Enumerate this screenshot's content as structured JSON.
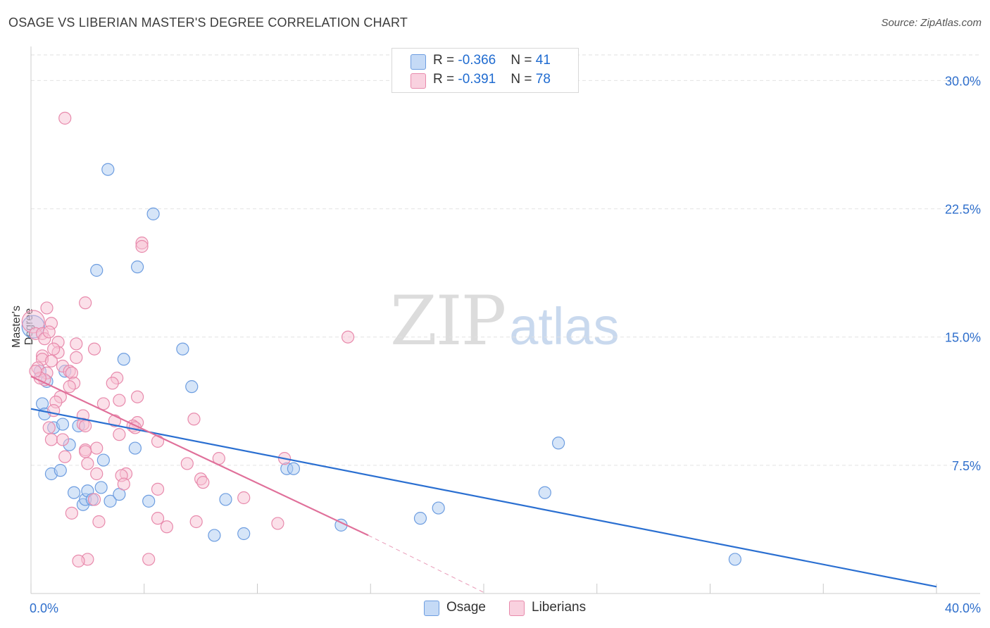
{
  "header": {
    "title": "OSAGE VS LIBERIAN MASTER'S DEGREE CORRELATION CHART",
    "source": "Source: ZipAtlas.com"
  },
  "watermark": {
    "zip": "ZIP",
    "atlas": "atlas"
  },
  "legend": {
    "rows": [
      {
        "r_label": "R = ",
        "r_value": "-0.366",
        "n_label": "N = ",
        "n_value": "41"
      },
      {
        "r_label": "R = ",
        "r_value": "-0.391",
        "n_label": "N = ",
        "n_value": "78"
      }
    ]
  },
  "colors": {
    "osage_fill": "#aecbf2",
    "osage_stroke": "#6d9de0",
    "osage_line": "#2a6fd1",
    "liberian_fill": "#f7c2d4",
    "liberian_stroke": "#e88aac",
    "liberian_line": "#e0709a",
    "axis_label": "#2f6fcc"
  },
  "chart_data": {
    "type": "scatter",
    "title": "OSAGE VS LIBERIAN MASTER'S DEGREE CORRELATION CHART",
    "xlabel": "",
    "ylabel": "Master's Degree",
    "xlim": [
      0,
      40
    ],
    "ylim": [
      0,
      31.5
    ],
    "x_tick_labels": [
      "0.0%",
      "40.0%"
    ],
    "y_ticks": [
      7.5,
      15.0,
      22.5,
      30.0
    ],
    "y_tick_labels": [
      "7.5%",
      "15.0%",
      "22.5%",
      "30.0%"
    ],
    "grid": true,
    "legend_position": "top-center",
    "series": [
      {
        "name": "Osage",
        "r": -0.366,
        "n": 41,
        "points": [
          [
            0.1,
            15.6
          ],
          [
            0.4,
            13.0
          ],
          [
            0.5,
            11.1
          ],
          [
            0.6,
            10.5
          ],
          [
            0.7,
            12.4
          ],
          [
            0.9,
            7.0
          ],
          [
            1.0,
            9.7
          ],
          [
            1.3,
            7.2
          ],
          [
            1.4,
            9.9
          ],
          [
            1.5,
            13.0
          ],
          [
            1.7,
            8.7
          ],
          [
            1.9,
            5.9
          ],
          [
            2.1,
            9.8
          ],
          [
            2.3,
            5.2
          ],
          [
            2.4,
            5.5
          ],
          [
            2.5,
            6.0
          ],
          [
            2.7,
            5.5
          ],
          [
            2.9,
            18.9
          ],
          [
            3.1,
            6.2
          ],
          [
            3.2,
            7.8
          ],
          [
            3.4,
            24.8
          ],
          [
            3.5,
            5.4
          ],
          [
            3.9,
            5.8
          ],
          [
            4.1,
            13.7
          ],
          [
            4.6,
            8.5
          ],
          [
            4.7,
            19.1
          ],
          [
            5.2,
            5.4
          ],
          [
            5.4,
            22.2
          ],
          [
            6.7,
            14.3
          ],
          [
            7.1,
            12.1
          ],
          [
            8.1,
            3.4
          ],
          [
            8.6,
            5.5
          ],
          [
            9.4,
            3.5
          ],
          [
            11.3,
            7.3
          ],
          [
            11.6,
            7.3
          ],
          [
            13.7,
            4.0
          ],
          [
            17.2,
            4.4
          ],
          [
            18.0,
            5.0
          ],
          [
            22.7,
            5.9
          ],
          [
            23.3,
            8.8
          ],
          [
            31.1,
            2.0
          ]
        ],
        "trend": {
          "x": [
            0,
            40
          ],
          "y": [
            10.8,
            0.4
          ]
        }
      },
      {
        "name": "Liberians",
        "r": -0.391,
        "n": 78,
        "points": [
          [
            1.5,
            27.8
          ],
          [
            4.9,
            20.5
          ],
          [
            4.9,
            20.3
          ],
          [
            2.4,
            17.0
          ],
          [
            0.7,
            16.7
          ],
          [
            0.1,
            15.9
          ],
          [
            0.9,
            15.8
          ],
          [
            0.2,
            15.2
          ],
          [
            0.5,
            15.2
          ],
          [
            0.6,
            14.9
          ],
          [
            14.0,
            15.0
          ],
          [
            1.2,
            14.7
          ],
          [
            2.0,
            14.6
          ],
          [
            2.8,
            14.3
          ],
          [
            1.2,
            14.1
          ],
          [
            0.5,
            13.9
          ],
          [
            0.5,
            13.7
          ],
          [
            2.0,
            13.8
          ],
          [
            0.9,
            13.6
          ],
          [
            1.4,
            13.3
          ],
          [
            0.3,
            13.2
          ],
          [
            1.7,
            13.0
          ],
          [
            0.7,
            12.9
          ],
          [
            1.8,
            12.9
          ],
          [
            3.8,
            12.6
          ],
          [
            0.6,
            12.5
          ],
          [
            1.9,
            12.3
          ],
          [
            3.6,
            12.3
          ],
          [
            1.7,
            12.1
          ],
          [
            1.3,
            11.5
          ],
          [
            1.1,
            11.2
          ],
          [
            4.7,
            11.5
          ],
          [
            3.2,
            11.1
          ],
          [
            3.9,
            11.3
          ],
          [
            1.0,
            10.7
          ],
          [
            2.3,
            10.4
          ],
          [
            3.7,
            10.1
          ],
          [
            7.2,
            10.2
          ],
          [
            0.8,
            9.7
          ],
          [
            2.3,
            9.9
          ],
          [
            4.7,
            10.0
          ],
          [
            4.5,
            9.8
          ],
          [
            4.6,
            9.7
          ],
          [
            2.4,
            9.8
          ],
          [
            3.9,
            9.3
          ],
          [
            0.9,
            9.0
          ],
          [
            1.4,
            9.0
          ],
          [
            5.6,
            8.9
          ],
          [
            2.4,
            8.4
          ],
          [
            2.9,
            8.5
          ],
          [
            2.4,
            8.3
          ],
          [
            1.5,
            8.0
          ],
          [
            8.3,
            7.9
          ],
          [
            11.2,
            7.9
          ],
          [
            6.9,
            7.6
          ],
          [
            2.5,
            7.6
          ],
          [
            4.2,
            7.0
          ],
          [
            2.9,
            7.0
          ],
          [
            4.0,
            6.9
          ],
          [
            7.5,
            6.7
          ],
          [
            7.6,
            6.5
          ],
          [
            4.1,
            6.4
          ],
          [
            5.6,
            6.1
          ],
          [
            9.4,
            5.6
          ],
          [
            2.8,
            5.5
          ],
          [
            1.8,
            4.7
          ],
          [
            5.6,
            4.4
          ],
          [
            7.3,
            4.2
          ],
          [
            3.0,
            4.2
          ],
          [
            10.9,
            4.1
          ],
          [
            6.0,
            3.9
          ],
          [
            2.5,
            2.0
          ],
          [
            2.1,
            1.9
          ],
          [
            5.2,
            2.0
          ],
          [
            0.4,
            12.6
          ],
          [
            0.2,
            13.0
          ],
          [
            1.0,
            14.3
          ],
          [
            0.8,
            15.3
          ]
        ],
        "trend": {
          "x": [
            0,
            14.9
          ],
          "y": [
            12.7,
            3.4
          ]
        },
        "trend_extension": {
          "x": [
            14.9,
            20.1
          ],
          "y": [
            3.4,
            0.0
          ]
        }
      }
    ]
  },
  "bottom_legend": {
    "osage": "Osage",
    "liberians": "Liberians"
  }
}
